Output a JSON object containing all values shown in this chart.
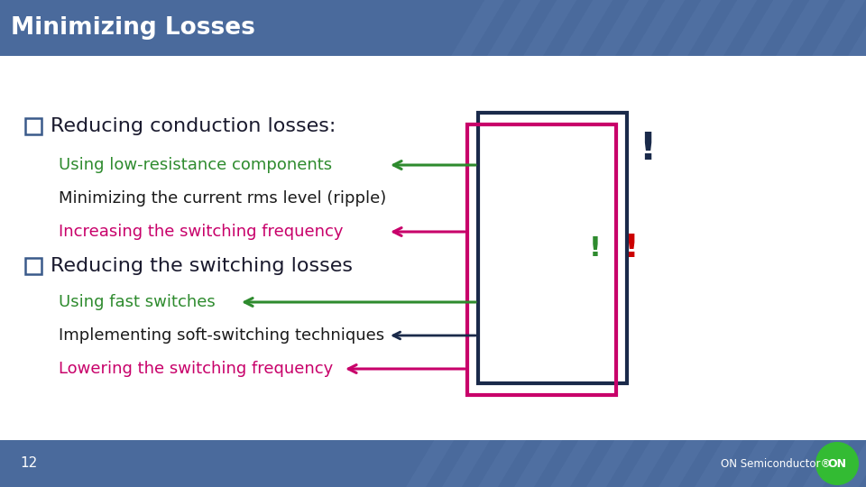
{
  "title": "Minimizing Losses",
  "title_bg_color": "#4a6a9c",
  "title_text_color": "#ffffff",
  "slide_bg_color": "#ffffff",
  "footer_bg_color": "#4a6a9c",
  "footer_text": "12",
  "footer_text_color": "#ffffff",
  "bullet1": "Reducing conduction losses:",
  "bullet1_color": "#1a1a2e",
  "bullet1_items": [
    {
      "text": "Using low-resistance components",
      "color": "#2e8b2e"
    },
    {
      "text": "Minimizing the current rms level (ripple)",
      "color": "#1a1a1a"
    },
    {
      "text": "Increasing the switching frequency",
      "color": "#c8006a"
    }
  ],
  "bullet2": "Reducing the switching losses",
  "bullet2_color": "#1a1a2e",
  "bullet2_items": [
    {
      "text": "Using fast switches",
      "color": "#2e8b2e"
    },
    {
      "text": "Implementing soft-switching techniques",
      "color": "#1a1a1a"
    },
    {
      "text": "Lowering the switching frequency",
      "color": "#c8006a"
    }
  ],
  "dark_box_color": "#1a2a4a",
  "pink_box_color": "#c8006a",
  "green_color": "#2e8b2e",
  "exclaim_dark_color": "#1a2a4a",
  "exclaim_red_color": "#cc0000",
  "exclaim_green_color": "#2e8b2e",
  "stripe_color": "#5a7aac",
  "stripe_alpha": 0.35
}
